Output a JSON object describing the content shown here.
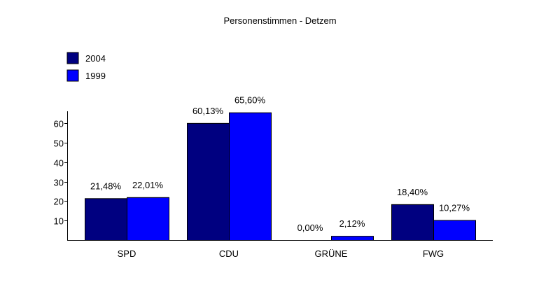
{
  "chart_data": {
    "type": "bar",
    "title": "Personenstimmen - Detzem",
    "xlabel": "",
    "ylabel": "",
    "ylim": [
      0,
      65
    ],
    "yticks": [
      10,
      20,
      30,
      40,
      50,
      60
    ],
    "categories": [
      "SPD",
      "CDU",
      "GRÜNE",
      "FWG"
    ],
    "series": [
      {
        "name": "2004",
        "color": "#000080",
        "values": [
          21.48,
          60.13,
          0.0,
          18.4
        ],
        "labels": [
          "21,48%",
          "60,13%",
          "0,00%",
          "18,40%"
        ]
      },
      {
        "name": "1999",
        "color": "#0000ff",
        "values": [
          22.01,
          65.6,
          2.12,
          10.27
        ],
        "labels": [
          "22,01%",
          "65,60%",
          "2,12%",
          "10,27%"
        ]
      }
    ],
    "legend": "top-left",
    "grid": false
  }
}
